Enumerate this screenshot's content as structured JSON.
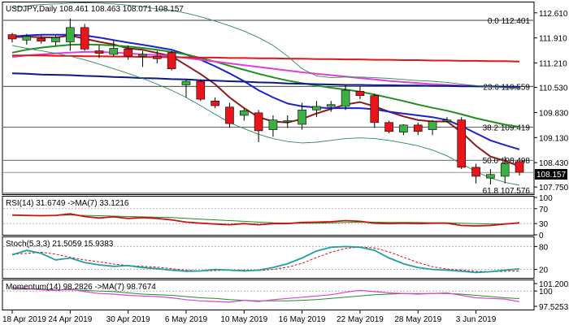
{
  "chart_data": {
    "type": "candlestick",
    "symbol_header": "USDJPY,Daily  108.461 108.463 108.071 108.157",
    "current_price_label": "108.157",
    "current_price": 108.157,
    "price_axis": {
      "ylim": [
        107.55,
        112.9
      ],
      "ticks": [
        "112.610",
        "111.910",
        "111.210",
        "110.530",
        "109.830",
        "109.130",
        "108.430",
        "107.750"
      ]
    },
    "x_axis": {
      "labels": [
        "18 Apr 2019",
        "24 Apr 2019",
        "30 Apr 2019",
        "6 May 2019",
        "10 May 2019",
        "16 May 2019",
        "22 May 2019",
        "28 May 2019",
        "3 Jun 2019"
      ],
      "label_index": [
        0,
        4,
        8,
        12,
        16,
        20,
        24,
        28,
        32
      ]
    },
    "candles": [
      {
        "o": 112.0,
        "h": 112.05,
        "l": 111.78,
        "c": 111.88
      },
      {
        "o": 111.85,
        "h": 112.02,
        "l": 111.72,
        "c": 111.95
      },
      {
        "o": 111.9,
        "h": 112.0,
        "l": 111.75,
        "c": 111.82
      },
      {
        "o": 111.8,
        "h": 112.0,
        "l": 111.7,
        "c": 111.92
      },
      {
        "o": 111.8,
        "h": 112.45,
        "l": 111.55,
        "c": 112.2
      },
      {
        "o": 112.2,
        "h": 112.3,
        "l": 111.55,
        "c": 111.6
      },
      {
        "o": 111.55,
        "h": 111.7,
        "l": 111.35,
        "c": 111.48
      },
      {
        "o": 111.45,
        "h": 111.85,
        "l": 111.4,
        "c": 111.62
      },
      {
        "o": 111.6,
        "h": 111.7,
        "l": 111.3,
        "c": 111.4
      },
      {
        "o": 111.4,
        "h": 111.55,
        "l": 111.1,
        "c": 111.45
      },
      {
        "o": 111.4,
        "h": 111.55,
        "l": 111.2,
        "c": 111.33
      },
      {
        "o": 111.5,
        "h": 111.55,
        "l": 111.0,
        "c": 111.05
      },
      {
        "o": 110.6,
        "h": 110.75,
        "l": 110.25,
        "c": 110.7
      },
      {
        "o": 110.7,
        "h": 110.75,
        "l": 110.15,
        "c": 110.2
      },
      {
        "o": 110.15,
        "h": 110.25,
        "l": 109.95,
        "c": 110.02
      },
      {
        "o": 109.98,
        "h": 110.1,
        "l": 109.4,
        "c": 109.52
      },
      {
        "o": 109.75,
        "h": 109.95,
        "l": 109.6,
        "c": 109.88
      },
      {
        "o": 109.82,
        "h": 109.9,
        "l": 109.0,
        "c": 109.32
      },
      {
        "o": 109.35,
        "h": 109.75,
        "l": 109.15,
        "c": 109.62
      },
      {
        "o": 109.6,
        "h": 109.75,
        "l": 109.4,
        "c": 109.6
      },
      {
        "o": 109.5,
        "h": 110.1,
        "l": 109.35,
        "c": 109.9
      },
      {
        "o": 109.9,
        "h": 110.15,
        "l": 109.7,
        "c": 110.0
      },
      {
        "o": 110.0,
        "h": 110.15,
        "l": 109.85,
        "c": 110.05
      },
      {
        "o": 110.0,
        "h": 110.6,
        "l": 109.9,
        "c": 110.45
      },
      {
        "o": 110.42,
        "h": 110.55,
        "l": 110.2,
        "c": 110.3
      },
      {
        "o": 110.3,
        "h": 110.35,
        "l": 109.4,
        "c": 109.55
      },
      {
        "o": 109.55,
        "h": 109.6,
        "l": 109.25,
        "c": 109.3
      },
      {
        "o": 109.28,
        "h": 109.5,
        "l": 109.2,
        "c": 109.48
      },
      {
        "o": 109.48,
        "h": 109.55,
        "l": 109.2,
        "c": 109.3
      },
      {
        "o": 109.35,
        "h": 109.62,
        "l": 109.2,
        "c": 109.58
      },
      {
        "o": 109.6,
        "h": 109.7,
        "l": 109.55,
        "c": 109.62
      },
      {
        "o": 109.62,
        "h": 109.7,
        "l": 108.25,
        "c": 108.3
      },
      {
        "o": 108.3,
        "h": 108.4,
        "l": 107.85,
        "c": 108.05
      },
      {
        "o": 108.0,
        "h": 108.25,
        "l": 107.82,
        "c": 108.1
      },
      {
        "o": 108.05,
        "h": 108.6,
        "l": 107.85,
        "c": 108.4
      },
      {
        "o": 108.46,
        "h": 108.46,
        "l": 108.07,
        "c": 108.16
      }
    ],
    "series": [
      {
        "id": "ma_fast",
        "color": "#8b1a1a",
        "values": [
          111.93,
          111.94,
          111.93,
          111.92,
          111.98,
          111.89,
          111.8,
          111.73,
          111.62,
          111.58,
          111.49,
          111.4,
          111.15,
          110.9,
          110.62,
          110.25,
          109.95,
          109.7,
          109.58,
          109.55,
          109.65,
          109.8,
          109.93,
          110.05,
          110.12,
          110.0,
          109.85,
          109.72,
          109.62,
          109.58,
          109.58,
          109.28,
          108.9,
          108.6,
          108.48,
          108.33
        ]
      },
      {
        "id": "ma_blue",
        "color": "#1a22cc",
        "values": [
          111.95,
          111.98,
          112.0,
          112.0,
          112.0,
          111.98,
          111.92,
          111.85,
          111.78,
          111.72,
          111.65,
          111.58,
          111.45,
          111.3,
          111.12,
          110.92,
          110.7,
          110.45,
          110.25,
          110.08,
          110.0,
          109.97,
          109.95,
          109.95,
          109.95,
          109.92,
          109.85,
          109.8,
          109.75,
          109.7,
          109.62,
          109.45,
          109.25,
          109.05,
          108.92,
          108.8
        ]
      },
      {
        "id": "ma_green",
        "color": "#1f8f1f",
        "values": [
          111.5,
          111.58,
          111.64,
          111.68,
          111.72,
          111.73,
          111.72,
          111.7,
          111.67,
          111.63,
          111.58,
          111.52,
          111.45,
          111.35,
          111.25,
          111.13,
          111.02,
          110.91,
          110.81,
          110.72,
          110.65,
          110.58,
          110.52,
          110.47,
          110.41,
          110.33,
          110.24,
          110.15,
          110.05,
          109.96,
          109.88,
          109.78,
          109.67,
          109.58,
          109.49,
          109.43
        ]
      },
      {
        "id": "ma_magenta",
        "color": "#e040d8",
        "values": [
          111.38,
          111.42,
          111.45,
          111.48,
          111.5,
          111.52,
          111.52,
          111.5,
          111.48,
          111.45,
          111.43,
          111.4,
          111.35,
          111.3,
          111.25,
          111.2,
          111.15,
          111.1,
          111.05,
          111.0,
          110.95,
          110.91,
          110.87,
          110.83,
          110.79,
          110.75,
          110.71,
          110.68,
          110.65,
          110.62,
          110.6,
          110.58,
          110.56,
          110.55,
          110.54,
          110.53
        ]
      },
      {
        "id": "ma_red",
        "color": "#e01818",
        "values": [
          111.42,
          111.42,
          111.42,
          111.41,
          111.41,
          111.4,
          111.4,
          111.39,
          111.39,
          111.38,
          111.38,
          111.37,
          111.37,
          111.36,
          111.36,
          111.35,
          111.35,
          111.34,
          111.34,
          111.33,
          111.33,
          111.32,
          111.32,
          111.31,
          111.31,
          111.3,
          111.3,
          111.29,
          111.29,
          111.28,
          111.28,
          111.27,
          111.27,
          111.26,
          111.26,
          111.25
        ]
      },
      {
        "id": "ma_navy",
        "color": "#0a1a80",
        "values": [
          110.92,
          110.91,
          110.89,
          110.88,
          110.87,
          110.85,
          110.84,
          110.82,
          110.81,
          110.79,
          110.78,
          110.76,
          110.75,
          110.73,
          110.72,
          110.7,
          110.69,
          110.67,
          110.66,
          110.64,
          110.63,
          110.62,
          110.61,
          110.6,
          110.6,
          110.59,
          110.59,
          110.58,
          110.58,
          110.57,
          110.57,
          110.56,
          110.56,
          110.56,
          110.55,
          110.55
        ]
      },
      {
        "id": "bb_upper",
        "color": "#2e8b57",
        "values": [
          112.75,
          112.8,
          112.84,
          112.86,
          112.88,
          112.89,
          112.88,
          112.86,
          112.82,
          112.78,
          112.72,
          112.68,
          112.6,
          112.5,
          112.38,
          112.25,
          112.1,
          111.92,
          111.7,
          111.4,
          111.05,
          110.85,
          110.8,
          110.82,
          110.82,
          110.8,
          110.78,
          110.75,
          110.72,
          110.7,
          110.67,
          110.62,
          110.58,
          110.55,
          110.52,
          110.5
        ]
      },
      {
        "id": "bb_lower",
        "color": "#2e8b57",
        "values": [
          111.7,
          111.62,
          111.55,
          111.48,
          111.4,
          111.3,
          111.18,
          111.05,
          110.92,
          110.78,
          110.62,
          110.45,
          110.25,
          110.02,
          109.78,
          109.55,
          109.38,
          109.22,
          109.1,
          109.02,
          108.98,
          109.0,
          109.05,
          109.1,
          109.12,
          109.1,
          109.05,
          108.98,
          108.9,
          108.78,
          108.62,
          108.4,
          108.18,
          108.0,
          107.88,
          107.8
        ]
      }
    ],
    "fib_levels": [
      {
        "label": "0.0 112.401",
        "value": 112.401
      },
      {
        "label": "23.6 110.559",
        "value": 110.559
      },
      {
        "label": "38.2 109.419",
        "value": 109.419
      },
      {
        "label": "50.0 108.498",
        "value": 108.498
      },
      {
        "label": "61.8 107.576",
        "value": 107.576
      }
    ],
    "rsi": {
      "header": "RSI(14) 31.6749  ->MA(7) 33.1216",
      "ylim": [
        0,
        100
      ],
      "ticks": [
        "100",
        "70",
        "30",
        "0"
      ],
      "levels": [
        70,
        30
      ],
      "rsi_color": "#cc1111",
      "ma_color": "#1f8f1f",
      "values": [
        53,
        52,
        51,
        52,
        56,
        49,
        45,
        48,
        44,
        46,
        44,
        40,
        34,
        31,
        29,
        27,
        30,
        27,
        30,
        30,
        33,
        34,
        35,
        38,
        36,
        31,
        30,
        31,
        30,
        31,
        31,
        25,
        24,
        25,
        29,
        31.67
      ],
      "ma": [
        52,
        52,
        52,
        52,
        53,
        52,
        51,
        50,
        49,
        48,
        47,
        46,
        44,
        42,
        40,
        38,
        36,
        34,
        32,
        31,
        31,
        31,
        32,
        33,
        34,
        34,
        33,
        33,
        33,
        32,
        32,
        31,
        30,
        29,
        29,
        33.12
      ]
    },
    "stoch": {
      "header": "Stoch(5,3,3) 21.5059 15.9383",
      "ylim": [
        0,
        100
      ],
      "ticks": [
        "80",
        "20"
      ],
      "levels": [
        80,
        20
      ],
      "main_color": "#1fa0a0",
      "signal_color": "#cc1111",
      "main": [
        58,
        70,
        62,
        45,
        50,
        38,
        32,
        28,
        30,
        25,
        22,
        18,
        15,
        16,
        20,
        18,
        16,
        18,
        25,
        35,
        50,
        68,
        78,
        80,
        78,
        70,
        50,
        35,
        25,
        20,
        18,
        15,
        12,
        14,
        18,
        21.51
      ],
      "signal": [
        60,
        62,
        65,
        60,
        52,
        45,
        40,
        34,
        30,
        28,
        26,
        22,
        18,
        16,
        17,
        18,
        18,
        17,
        20,
        26,
        36,
        51,
        65,
        75,
        79,
        76,
        66,
        52,
        38,
        27,
        21,
        18,
        15,
        14,
        15,
        15.94
      ]
    },
    "momentum": {
      "header": "Momentum(14) 98.2826  ->MA(7) 98.7674",
      "ticks": [
        "101.2002",
        "100",
        "97.5253"
      ],
      "ylim": [
        97.0,
        101.6
      ],
      "level": 100,
      "mom_color": "#e040d8",
      "ma_color": "#1f8f1f",
      "values": [
        100.6,
        100.4,
        100.2,
        100.1,
        100.3,
        99.9,
        99.6,
        99.5,
        99.3,
        99.2,
        99.1,
        98.9,
        98.6,
        98.4,
        98.3,
        98.2,
        98.5,
        98.3,
        98.6,
        98.8,
        99.0,
        99.2,
        99.4,
        99.8,
        100.1,
        99.9,
        99.7,
        99.6,
        99.5,
        99.6,
        99.7,
        99.3,
        98.9,
        98.8,
        98.7,
        98.28
      ],
      "ma": [
        100.3,
        100.3,
        100.3,
        100.2,
        100.2,
        100.1,
        100.0,
        99.9,
        99.7,
        99.5,
        99.4,
        99.3,
        99.1,
        98.9,
        98.8,
        98.6,
        98.5,
        98.4,
        98.4,
        98.4,
        98.5,
        98.6,
        98.8,
        99.0,
        99.2,
        99.4,
        99.5,
        99.6,
        99.6,
        99.6,
        99.6,
        99.5,
        99.3,
        99.1,
        98.9,
        98.77
      ]
    }
  }
}
